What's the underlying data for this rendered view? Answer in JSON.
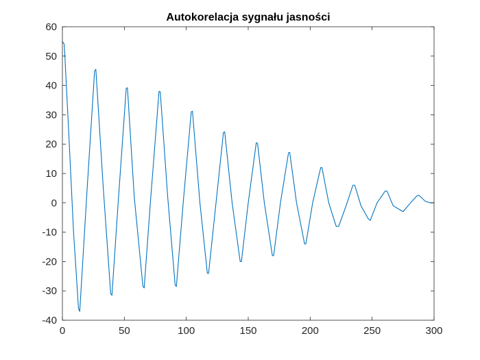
{
  "chart_data": {
    "type": "line",
    "title": "Autokorelacja sygnału jasności",
    "xlabel": "",
    "ylabel": "",
    "xlim": [
      0,
      300
    ],
    "ylim": [
      -40,
      60
    ],
    "xticks": [
      0,
      50,
      100,
      150,
      200,
      250,
      300
    ],
    "yticks": [
      -40,
      -30,
      -20,
      -10,
      0,
      10,
      20,
      30,
      40,
      50,
      60
    ],
    "grid": false,
    "box": true,
    "line_color": "#0072BD",
    "axis_color": "#262626",
    "series": [
      {
        "x": [
          0,
          1.5,
          5,
          9,
          13,
          14,
          20,
          26,
          27,
          33,
          39,
          40,
          45,
          51.5,
          52.5,
          58,
          65,
          66,
          71,
          78,
          79,
          85,
          91,
          92,
          97.5,
          104,
          105,
          111,
          117,
          118,
          124,
          130,
          131,
          137,
          143.5,
          144.5,
          150,
          156.5,
          157.5,
          163,
          169.5,
          170.5,
          176,
          182.5,
          183.5,
          189,
          195.5,
          196.5,
          202,
          208.5,
          209.5,
          215,
          221,
          223,
          229,
          234.5,
          236,
          241,
          247,
          248.5,
          254,
          260.5,
          262,
          267,
          273,
          275,
          281,
          286.5,
          288,
          293,
          297,
          300
        ],
        "y": [
          55,
          54,
          25,
          -10,
          -36,
          -37,
          5,
          45,
          45.5,
          5,
          -31,
          -31.5,
          0,
          39,
          39.2,
          2,
          -28.5,
          -29,
          0,
          38,
          37.8,
          2,
          -28,
          -28.5,
          0,
          31,
          31.2,
          0,
          -24,
          -24,
          0,
          24,
          24.2,
          0,
          -20,
          -20,
          0,
          20.5,
          20.3,
          0,
          -18,
          -18,
          0,
          17,
          17.2,
          0,
          -14,
          -14,
          0,
          12,
          12,
          0,
          -8,
          -8,
          -1,
          6,
          6,
          -1,
          -5.5,
          -6,
          0,
          4,
          4,
          -1,
          -2.5,
          -3,
          0,
          2.5,
          2.5,
          0.5,
          0,
          0
        ]
      }
    ]
  }
}
